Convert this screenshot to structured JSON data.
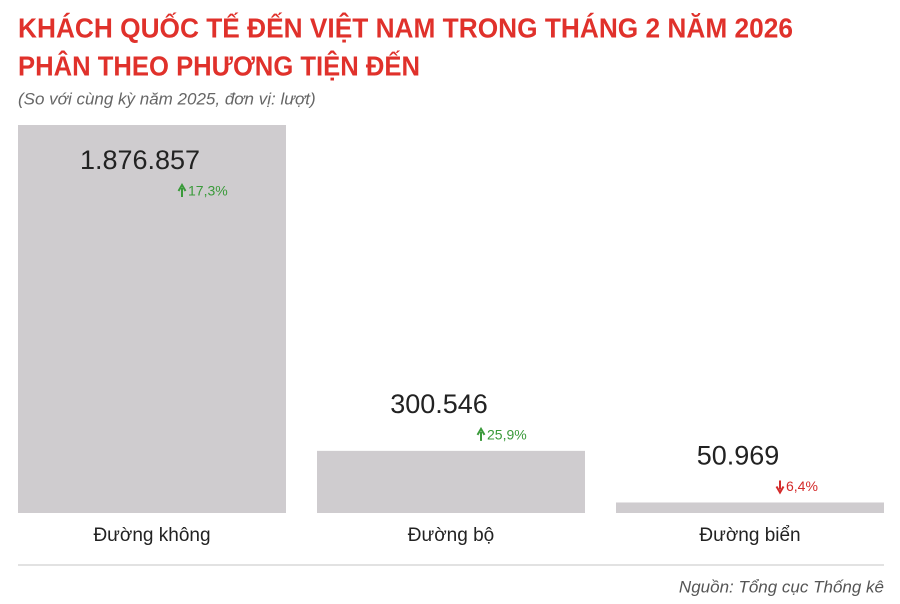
{
  "chart_data": {
    "type": "bar",
    "title": [
      "KHÁCH QUỐC TẾ ĐẾN VIỆT NAM TRONG THÁNG 2 NĂM 2026",
      "PHÂN THEO PHƯƠNG TIỆN ĐẾN"
    ],
    "subtitle": "(So với cùng kỳ năm 2025, đơn vị: lượt)",
    "categories": [
      "Đường không",
      "Đường bộ",
      "Đường biển"
    ],
    "values": [
      1876857,
      300546,
      50969
    ],
    "value_labels": [
      "1.876.857",
      "300.546",
      "50.969"
    ],
    "changes": [
      17.3,
      25.9,
      -6.4
    ],
    "change_labels": [
      "17,3%",
      "25,9%",
      "6,4%"
    ],
    "color": "#cfcccf",
    "up_color": "#3a9a3a",
    "down_color": "#d42a2a",
    "source": "Nguồn: Tổng cục Thống kê"
  }
}
